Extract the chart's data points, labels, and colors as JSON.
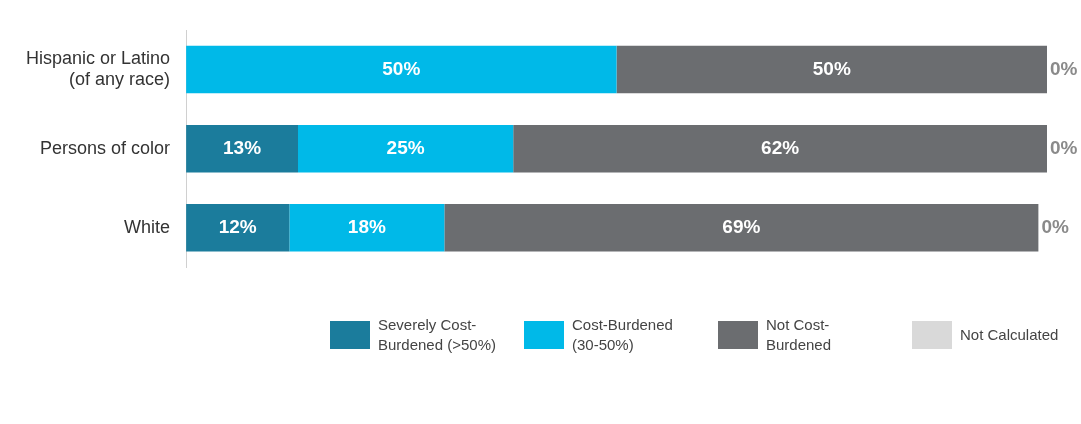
{
  "chart_data": {
    "type": "bar",
    "orientation": "horizontal",
    "stacked": true,
    "categories": [
      "Hispanic or Latino (of any race)",
      "Persons of color",
      "White"
    ],
    "series": [
      {
        "name": "Severely Cost-Burdened (>50%)",
        "color": "#1b7c9c",
        "values": [
          0,
          13,
          12
        ],
        "value_labels": [
          null,
          "13%",
          "12%"
        ]
      },
      {
        "name": "Cost-Burdened (30-50%)",
        "color": "#00b9e8",
        "values": [
          50,
          25,
          18
        ],
        "value_labels": [
          "50%",
          "25%",
          "18%"
        ]
      },
      {
        "name": "Not Cost-Burdened",
        "color": "#6b6d70",
        "values": [
          50,
          62,
          69
        ],
        "value_labels": [
          "50%",
          "62%",
          "69%"
        ]
      },
      {
        "name": "Not Calculated",
        "color": "#d9d9d9",
        "values": [
          0,
          0,
          0
        ],
        "value_labels": [
          "0%",
          "0%",
          "0%"
        ]
      }
    ],
    "tick_labels": "y",
    "legend": "bottom"
  }
}
